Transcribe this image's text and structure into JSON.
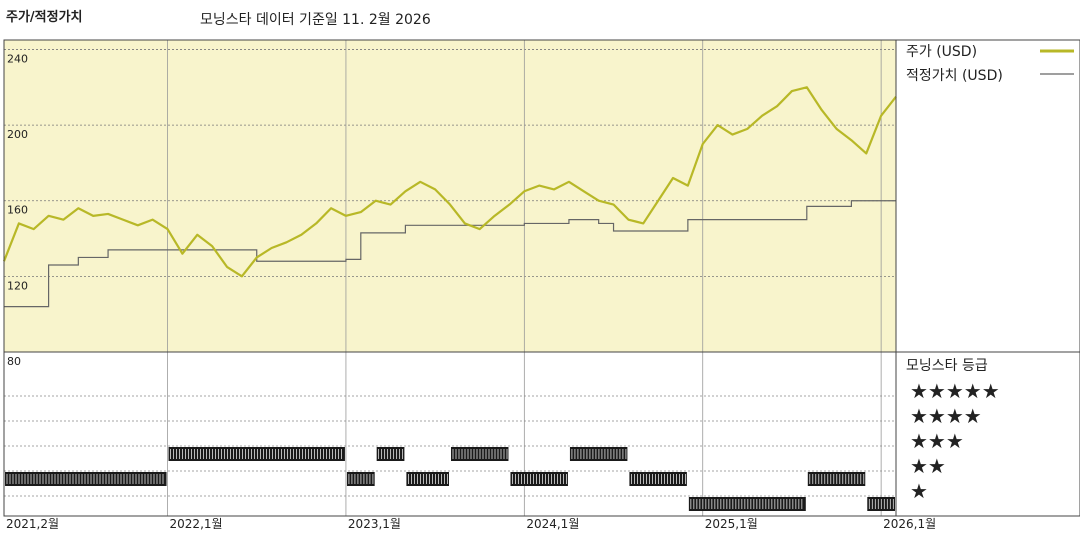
{
  "header": {
    "left_title": "주가/적정가치",
    "subtitle": "모닝스타 데이터 기준일 11. 2월 2026"
  },
  "colors": {
    "price": "#b8b827",
    "fair_value": "#666666",
    "plot_bg": "#f8f4cc",
    "grid": "#777777",
    "rating_bar": "#1a1a1a"
  },
  "chart_data": {
    "type": "line",
    "x_unit": "month",
    "x_start": "2021-02",
    "x_end": "2026-02",
    "ylim": [
      80,
      245
    ],
    "y_ticks": [
      "240",
      "200",
      "160",
      "120",
      "80"
    ],
    "y_tick_values": [
      240,
      200,
      160,
      120,
      80
    ],
    "x_ticks": [
      {
        "label": "2021,2월",
        "x": "2021-02"
      },
      {
        "label": "2022,1월",
        "x": "2022-01"
      },
      {
        "label": "2023,1월",
        "x": "2023-01"
      },
      {
        "label": "2024,1월",
        "x": "2024-01"
      },
      {
        "label": "2025,1월",
        "x": "2025-01"
      },
      {
        "label": "2026,1월",
        "x": "2026-01"
      }
    ],
    "grid": true,
    "legend": {
      "placement": "right",
      "entries": [
        {
          "label": "주가 (USD)",
          "series": "price"
        },
        {
          "label": "적정가치 (USD)",
          "series": "fair_value"
        }
      ]
    },
    "series": [
      {
        "id": "price",
        "x": [
          "2021-02",
          "2021-03",
          "2021-04",
          "2021-05",
          "2021-06",
          "2021-07",
          "2021-08",
          "2021-09",
          "2021-10",
          "2021-11",
          "2021-12",
          "2022-01",
          "2022-02",
          "2022-03",
          "2022-04",
          "2022-05",
          "2022-06",
          "2022-07",
          "2022-08",
          "2022-09",
          "2022-10",
          "2022-11",
          "2022-12",
          "2023-01",
          "2023-02",
          "2023-03",
          "2023-04",
          "2023-05",
          "2023-06",
          "2023-07",
          "2023-08",
          "2023-09",
          "2023-10",
          "2023-11",
          "2023-12",
          "2024-01",
          "2024-02",
          "2024-03",
          "2024-04",
          "2024-05",
          "2024-06",
          "2024-07",
          "2024-08",
          "2024-09",
          "2024-10",
          "2024-11",
          "2024-12",
          "2025-01",
          "2025-02",
          "2025-03",
          "2025-04",
          "2025-05",
          "2025-06",
          "2025-07",
          "2025-08",
          "2025-09",
          "2025-10",
          "2025-11",
          "2025-12",
          "2026-01",
          "2026-02"
        ],
        "values": [
          128,
          148,
          145,
          152,
          150,
          156,
          152,
          153,
          150,
          147,
          150,
          145,
          132,
          142,
          136,
          125,
          120,
          130,
          135,
          138,
          142,
          148,
          156,
          152,
          154,
          160,
          158,
          165,
          170,
          166,
          158,
          148,
          145,
          152,
          158,
          165,
          168,
          166,
          170,
          165,
          160,
          158,
          150,
          148,
          160,
          172,
          168,
          190,
          200,
          195,
          198,
          205,
          210,
          218,
          220,
          208,
          198,
          192,
          185,
          205,
          215
        ]
      },
      {
        "id": "fair_value",
        "x": [
          "2021-02",
          "2021-03",
          "2021-04",
          "2021-05",
          "2021-06",
          "2021-07",
          "2021-08",
          "2021-09",
          "2021-10",
          "2021-11",
          "2021-12",
          "2022-01",
          "2022-02",
          "2022-03",
          "2022-04",
          "2022-05",
          "2022-06",
          "2022-07",
          "2022-08",
          "2022-09",
          "2022-10",
          "2022-11",
          "2022-12",
          "2023-01",
          "2023-02",
          "2023-03",
          "2023-04",
          "2023-05",
          "2023-06",
          "2023-07",
          "2023-08",
          "2023-09",
          "2023-10",
          "2023-11",
          "2023-12",
          "2024-01",
          "2024-02",
          "2024-03",
          "2024-04",
          "2024-05",
          "2024-06",
          "2024-07",
          "2024-08",
          "2024-09",
          "2024-10",
          "2024-11",
          "2024-12",
          "2025-01",
          "2025-02",
          "2025-03",
          "2025-04",
          "2025-05",
          "2025-06",
          "2025-07",
          "2025-08",
          "2025-09",
          "2025-10",
          "2025-11",
          "2025-12",
          "2026-01",
          "2026-02"
        ],
        "values": [
          104,
          104,
          104,
          126,
          126,
          130,
          130,
          134,
          134,
          134,
          134,
          134,
          134,
          134,
          134,
          134,
          134,
          128,
          128,
          128,
          128,
          128,
          128,
          129,
          143,
          143,
          143,
          147,
          147,
          147,
          147,
          147,
          147,
          147,
          147,
          148,
          148,
          148,
          150,
          150,
          148,
          144,
          144,
          144,
          144,
          144,
          150,
          150,
          150,
          150,
          150,
          150,
          150,
          150,
          157,
          157,
          157,
          160,
          160,
          160,
          160
        ]
      }
    ]
  },
  "ratings": {
    "title": "모닝스타 등급",
    "levels": [
      "★★★★★",
      "★★★★",
      "★★★",
      "★★",
      "★"
    ],
    "level_values": [
      5,
      4,
      3,
      2,
      1
    ],
    "periods": [
      {
        "start": "2021-02",
        "end": "2022-01",
        "stars": 2
      },
      {
        "start": "2022-01",
        "end": "2023-01",
        "stars": 3
      },
      {
        "start": "2023-01",
        "end": "2023-03",
        "stars": 2
      },
      {
        "start": "2023-03",
        "end": "2023-05",
        "stars": 3
      },
      {
        "start": "2023-05",
        "end": "2023-08",
        "stars": 2
      },
      {
        "start": "2023-08",
        "end": "2023-12",
        "stars": 3
      },
      {
        "start": "2023-12",
        "end": "2024-04",
        "stars": 2
      },
      {
        "start": "2024-04",
        "end": "2024-08",
        "stars": 3
      },
      {
        "start": "2024-08",
        "end": "2024-12",
        "stars": 2
      },
      {
        "start": "2024-12",
        "end": "2025-08",
        "stars": 1
      },
      {
        "start": "2025-08",
        "end": "2025-12",
        "stars": 2
      },
      {
        "start": "2025-12",
        "end": "2026-02",
        "stars": 1
      }
    ]
  }
}
